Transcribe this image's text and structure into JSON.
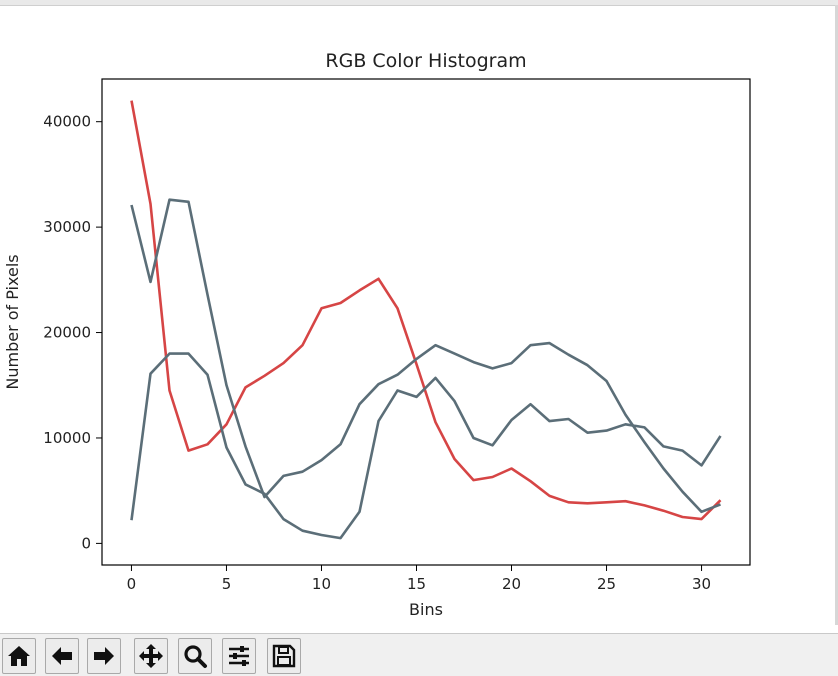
{
  "chart_data": {
    "type": "line",
    "title": "RGB Color Histogram",
    "xlabel": "Bins",
    "ylabel": "Number of Pixels",
    "xlim": [
      -1.55,
      32.55
    ],
    "ylim": [
      -2050,
      44050
    ],
    "xticks": [
      0,
      5,
      10,
      15,
      20,
      25,
      30
    ],
    "yticks": [
      0,
      10000,
      20000,
      30000,
      40000
    ],
    "grid": false,
    "legend": "none",
    "x": [
      0,
      1,
      2,
      3,
      4,
      5,
      6,
      7,
      8,
      9,
      10,
      11,
      12,
      13,
      14,
      15,
      16,
      17,
      18,
      19,
      20,
      21,
      22,
      23,
      24,
      25,
      26,
      27,
      28,
      29,
      30,
      31
    ],
    "series": [
      {
        "color": "#d64545",
        "values": [
          42000,
          32200,
          14500,
          8800,
          9400,
          11300,
          14800,
          15900,
          17100,
          18800,
          22300,
          22800,
          24000,
          25100,
          22300,
          17000,
          11500,
          8000,
          6000,
          6300,
          7100,
          5900,
          4500,
          3900,
          3800,
          3900,
          4000,
          3600,
          3100,
          2500,
          2300,
          4100
        ]
      },
      {
        "color": "#5b6e78",
        "values": [
          32100,
          24800,
          32600,
          32400,
          23600,
          15000,
          9200,
          4400,
          6400,
          6800,
          7900,
          9400,
          13200,
          15100,
          16000,
          17500,
          18800,
          18000,
          17200,
          16600,
          17100,
          18800,
          19000,
          17900,
          16900,
          15400,
          12200,
          9600,
          7100,
          4900,
          3000,
          3700
        ]
      },
      {
        "color": "#5b6e78",
        "values": [
          2200,
          16100,
          18000,
          18000,
          16000,
          9100,
          5600,
          4700,
          2300,
          1200,
          800,
          500,
          3000,
          11600,
          14500,
          13900,
          15700,
          13500,
          10000,
          9300,
          11700,
          13200,
          11600,
          11800,
          10500,
          10700,
          11300,
          11000,
          9200,
          8800,
          7400,
          10200
        ]
      }
    ]
  },
  "toolbar": {
    "buttons": [
      {
        "name": "home",
        "icon": "home-icon"
      },
      {
        "name": "back",
        "icon": "arrow-left-icon"
      },
      {
        "name": "forward",
        "icon": "arrow-right-icon"
      },
      {
        "name": "pan",
        "icon": "move-icon"
      },
      {
        "name": "zoom",
        "icon": "zoom-icon"
      },
      {
        "name": "configure-subplots",
        "icon": "sliders-icon"
      },
      {
        "name": "save",
        "icon": "save-icon"
      }
    ]
  }
}
